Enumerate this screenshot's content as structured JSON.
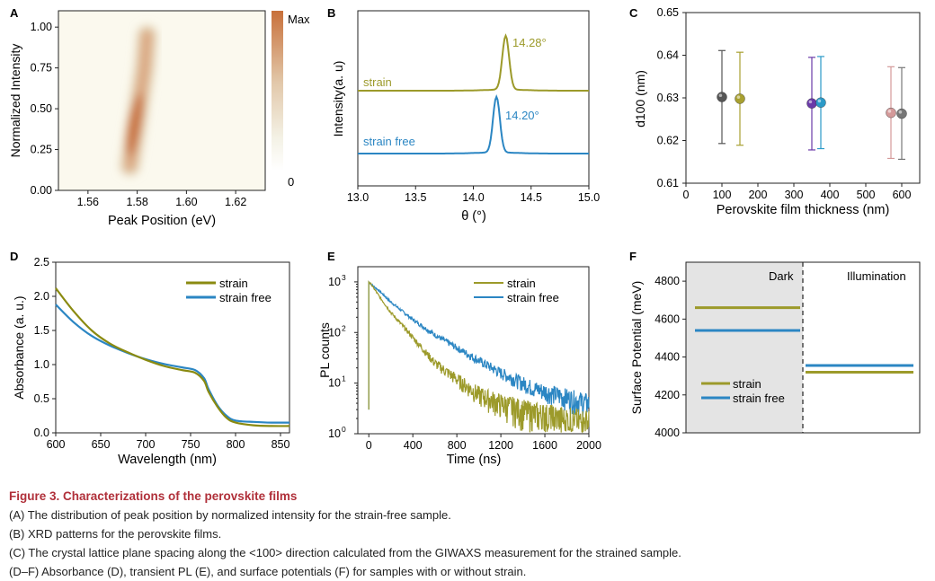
{
  "panels": {
    "A": {
      "letter": "A",
      "xlabel": "Peak Position (eV)",
      "ylabel": "Normalized Intensity",
      "xticks": [
        "1.56",
        "1.58",
        "1.60",
        "1.62"
      ],
      "yticks": [
        "0.00",
        "0.25",
        "0.50",
        "0.75",
        "1.00"
      ],
      "colorbar_max": "Max",
      "colorbar_min": "0"
    },
    "B": {
      "letter": "B",
      "xlabel": "θ (°)",
      "ylabel": "Intensity(a. u)",
      "xticks": [
        "13.0",
        "13.5",
        "14.0",
        "14.5",
        "15.0"
      ]
    },
    "C": {
      "letter": "C",
      "xlabel": "Perovskite film thickness (nm)",
      "ylabel": "d100 (nm)",
      "xticks": [
        "0",
        "100",
        "200",
        "300",
        "400",
        "500",
        "600"
      ],
      "yticks": [
        "0.61",
        "0.62",
        "0.63",
        "0.64",
        "0.65"
      ]
    },
    "D": {
      "letter": "D",
      "xlabel": "Wavelength (nm)",
      "ylabel": "Absorbance (a. u.)",
      "xticks": [
        "600",
        "650",
        "700",
        "750",
        "800",
        "850"
      ],
      "yticks": [
        "0.0",
        "0.5",
        "1.0",
        "1.5",
        "2.0",
        "2.5"
      ]
    },
    "E": {
      "letter": "E",
      "xlabel": "Time (ns)",
      "ylabel": "PL counts",
      "xticks": [
        "0",
        "400",
        "800",
        "1200",
        "1600",
        "2000"
      ]
    },
    "F": {
      "letter": "F",
      "ylabel": "Surface Potential (meV)",
      "yticks": [
        "4000",
        "4200",
        "4400",
        "4600",
        "4800"
      ],
      "dark_label": "Dark",
      "illum_label": "Illumination"
    }
  },
  "legend": {
    "strain": "strain",
    "strain_free": "strain free"
  },
  "colors": {
    "strain": "#9c9a2a",
    "strain_free": "#2b86c3",
    "strain_D": "#8a8a10",
    "heat": "#c8703a"
  },
  "caption": {
    "title": "Figure 3. Characterizations of the perovskite films",
    "lines": [
      "(A) The distribution of peak position by normalized intensity for the strain-free sample.",
      "(B) XRD patterns for the perovskite films.",
      "(C) The crystal lattice plane spacing along the <100> direction calculated from the GIWAXS measurement for the strained sample.",
      "(D–F) Absorbance (D), transient PL (E), and surface potentials (F) for samples with or without strain."
    ]
  },
  "chart_data": [
    {
      "panel": "A",
      "type": "heatmap",
      "xlim": [
        1.548,
        1.632
      ],
      "ylim": [
        0,
        1.1
      ],
      "ridge": [
        {
          "x": 1.577,
          "y": 0.15
        },
        {
          "x": 1.58,
          "y": 0.45
        },
        {
          "x": 1.583,
          "y": 0.75
        },
        {
          "x": 1.584,
          "y": 0.95
        }
      ],
      "peak_density_region": {
        "x": [
          1.577,
          1.581
        ],
        "y": [
          0.2,
          0.6
        ]
      }
    },
    {
      "panel": "B",
      "type": "line",
      "xlim": [
        13.0,
        15.0
      ],
      "series": [
        {
          "name": "strain",
          "peak_x": 14.28,
          "peak_label": "14.28°"
        },
        {
          "name": "strain free",
          "peak_x": 14.2,
          "peak_label": "14.20°"
        }
      ]
    },
    {
      "panel": "C",
      "type": "scatter",
      "xlim": [
        0,
        650
      ],
      "ylim": [
        0.61,
        0.65
      ],
      "points": [
        {
          "x": 100,
          "y": 0.6302,
          "lo": 0.6193,
          "hi": 0.6411,
          "color": "#555555"
        },
        {
          "x": 150,
          "y": 0.6298,
          "lo": 0.6189,
          "hi": 0.6407,
          "color": "#a8a030"
        },
        {
          "x": 350,
          "y": 0.6287,
          "lo": 0.6178,
          "hi": 0.6395,
          "color": "#6a3aa8"
        },
        {
          "x": 375,
          "y": 0.6289,
          "lo": 0.6181,
          "hi": 0.6397,
          "color": "#2b9ac8"
        },
        {
          "x": 570,
          "y": 0.6265,
          "lo": 0.6158,
          "hi": 0.6373,
          "color": "#d49a9a"
        },
        {
          "x": 600,
          "y": 0.6263,
          "lo": 0.6156,
          "hi": 0.6371,
          "color": "#777777"
        }
      ]
    },
    {
      "panel": "D",
      "type": "line",
      "xlim": [
        600,
        860
      ],
      "ylim": [
        0,
        2.5
      ],
      "series": [
        {
          "name": "strain",
          "x": [
            600,
            620,
            640,
            660,
            680,
            700,
            720,
            740,
            755,
            765,
            770,
            780,
            790,
            800,
            820,
            840,
            860
          ],
          "values": [
            2.12,
            1.78,
            1.5,
            1.31,
            1.18,
            1.07,
            0.98,
            0.92,
            0.88,
            0.76,
            0.6,
            0.38,
            0.22,
            0.15,
            0.11,
            0.1,
            0.1
          ]
        },
        {
          "name": "strain free",
          "x": [
            600,
            620,
            640,
            660,
            680,
            700,
            720,
            740,
            755,
            765,
            770,
            780,
            790,
            800,
            820,
            840,
            860
          ],
          "values": [
            1.88,
            1.62,
            1.42,
            1.28,
            1.17,
            1.08,
            1.01,
            0.96,
            0.92,
            0.8,
            0.64,
            0.4,
            0.25,
            0.18,
            0.16,
            0.15,
            0.15
          ]
        }
      ]
    },
    {
      "panel": "E",
      "type": "line",
      "yscale": "log",
      "xlim": [
        -100,
        2000
      ],
      "ylim": [
        1,
        1000
      ],
      "series": [
        {
          "name": "strain",
          "x": [
            0,
            20,
            100,
            200,
            400,
            600,
            800,
            1000,
            1200,
            1500,
            2000
          ],
          "values": [
            1000,
            900,
            500,
            250,
            80,
            25,
            12,
            6,
            4,
            2.5,
            1.6
          ]
        },
        {
          "name": "strain free",
          "x": [
            0,
            20,
            100,
            200,
            400,
            600,
            800,
            1000,
            1200,
            1500,
            2000
          ],
          "values": [
            1000,
            900,
            650,
            400,
            180,
            90,
            50,
            28,
            16,
            8,
            4
          ]
        }
      ]
    },
    {
      "panel": "F",
      "type": "bar",
      "ylim": [
        4000,
        4900
      ],
      "categories": [
        "Dark",
        "Illumination"
      ],
      "series": [
        {
          "name": "strain",
          "values": [
            4660,
            4320
          ]
        },
        {
          "name": "strain free",
          "values": [
            4540,
            4355
          ]
        }
      ]
    }
  ]
}
